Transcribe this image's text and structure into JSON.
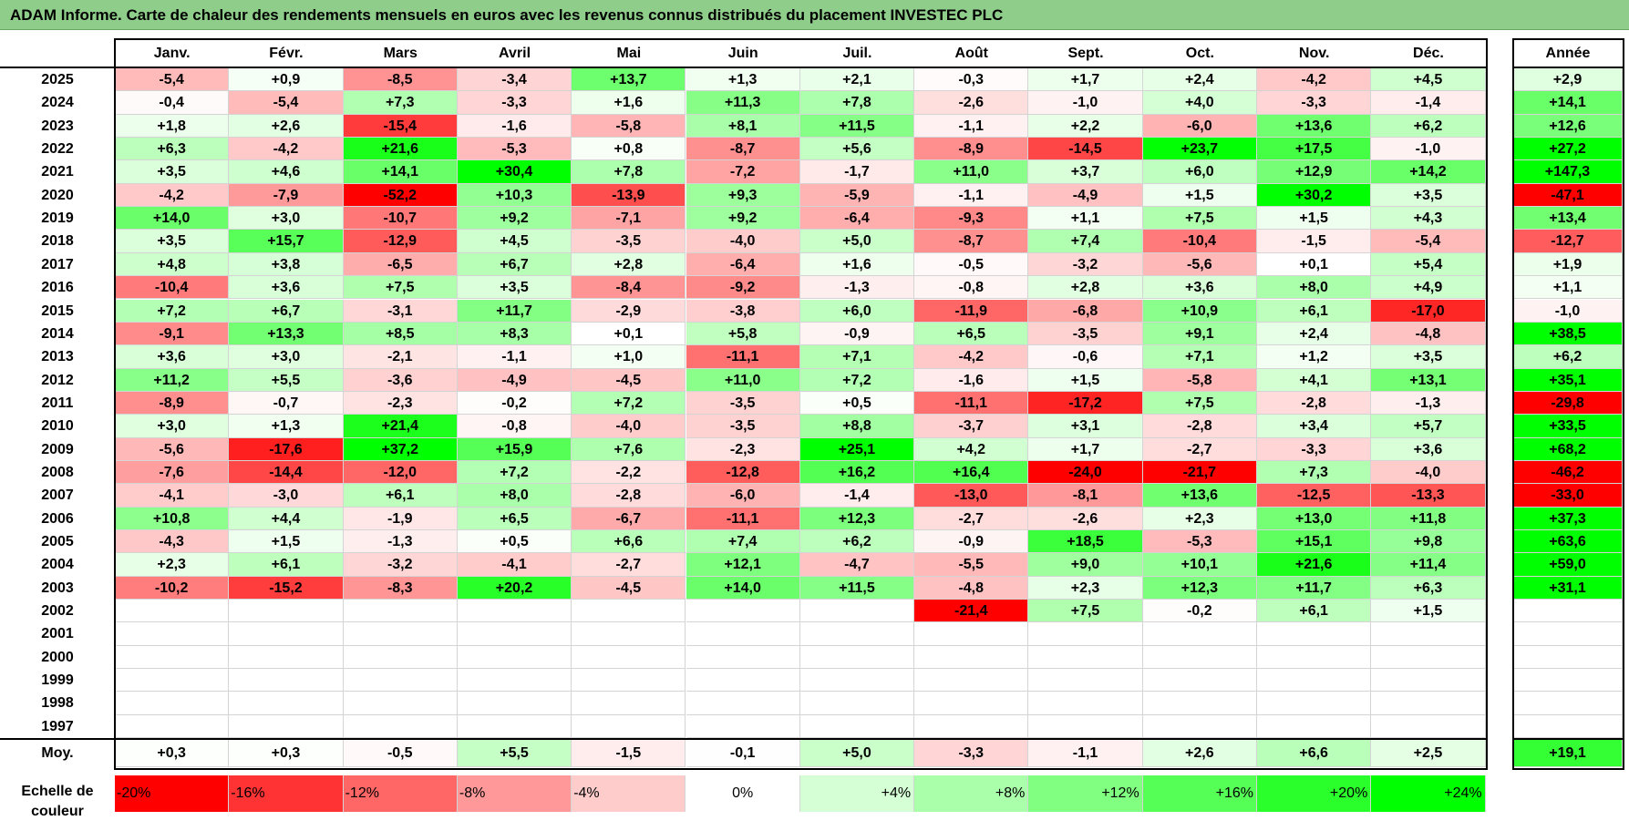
{
  "title": "ADAM Informe. Carte de chaleur des rendements mensuels en euros avec les revenus connus distribués du placement INVESTEC PLC",
  "chart_data": {
    "type": "heatmap",
    "title": "ADAM Informe. Carte de chaleur des rendements mensuels en euros avec les revenus connus distribués du placement INVESTEC PLC",
    "months": [
      "Janv.",
      "Févr.",
      "Mars",
      "Avril",
      "Mai",
      "Juin",
      "Juil.",
      "Août",
      "Sept.",
      "Oct.",
      "Nov.",
      "Déc."
    ],
    "year_header": "Année",
    "average_label": "Moy.",
    "rows": [
      {
        "year": "2025",
        "values": [
          "-5,4",
          "+0,9",
          "-8,5",
          "-3,4",
          "+13,7",
          "+1,3",
          "+2,1",
          "-0,3",
          "+1,7",
          "+2,4",
          "-4,2",
          "+4,5"
        ],
        "annual": "+2,9"
      },
      {
        "year": "2024",
        "values": [
          "-0,4",
          "-5,4",
          "+7,3",
          "-3,3",
          "+1,6",
          "+11,3",
          "+7,8",
          "-2,6",
          "-1,0",
          "+4,0",
          "-3,3",
          "-1,4"
        ],
        "annual": "+14,1"
      },
      {
        "year": "2023",
        "values": [
          "+1,8",
          "+2,6",
          "-15,4",
          "-1,6",
          "-5,8",
          "+8,1",
          "+11,5",
          "-1,1",
          "+2,2",
          "-6,0",
          "+13,6",
          "+6,2"
        ],
        "annual": "+12,6"
      },
      {
        "year": "2022",
        "values": [
          "+6,3",
          "-4,2",
          "+21,6",
          "-5,3",
          "+0,8",
          "-8,7",
          "+5,6",
          "-8,9",
          "-14,5",
          "+23,7",
          "+17,5",
          "-1,0"
        ],
        "annual": "+27,2"
      },
      {
        "year": "2021",
        "values": [
          "+3,5",
          "+4,6",
          "+14,1",
          "+30,4",
          "+7,8",
          "-7,2",
          "-1,7",
          "+11,0",
          "+3,7",
          "+6,0",
          "+12,9",
          "+14,2"
        ],
        "annual": "+147,3"
      },
      {
        "year": "2020",
        "values": [
          "-4,2",
          "-7,9",
          "-52,2",
          "+10,3",
          "-13,9",
          "+9,3",
          "-5,9",
          "-1,1",
          "-4,9",
          "+1,5",
          "+30,2",
          "+3,5"
        ],
        "annual": "-47,1"
      },
      {
        "year": "2019",
        "values": [
          "+14,0",
          "+3,0",
          "-10,7",
          "+9,2",
          "-7,1",
          "+9,2",
          "-6,4",
          "-9,3",
          "+1,1",
          "+7,5",
          "+1,5",
          "+4,3"
        ],
        "annual": "+13,4"
      },
      {
        "year": "2018",
        "values": [
          "+3,5",
          "+15,7",
          "-12,9",
          "+4,5",
          "-3,5",
          "-4,0",
          "+5,0",
          "-8,7",
          "+7,4",
          "-10,4",
          "-1,5",
          "-5,4"
        ],
        "annual": "-12,7"
      },
      {
        "year": "2017",
        "values": [
          "+4,8",
          "+3,8",
          "-6,5",
          "+6,7",
          "+2,8",
          "-6,4",
          "+1,6",
          "-0,5",
          "-3,2",
          "-5,6",
          "+0,1",
          "+5,4"
        ],
        "annual": "+1,9"
      },
      {
        "year": "2016",
        "values": [
          "-10,4",
          "+3,6",
          "+7,5",
          "+3,5",
          "-8,4",
          "-9,2",
          "-1,3",
          "-0,8",
          "+2,8",
          "+3,6",
          "+8,0",
          "+4,9"
        ],
        "annual": "+1,1"
      },
      {
        "year": "2015",
        "values": [
          "+7,2",
          "+6,7",
          "-3,1",
          "+11,7",
          "-2,9",
          "-3,8",
          "+6,0",
          "-11,9",
          "-6,8",
          "+10,9",
          "+6,1",
          "-17,0"
        ],
        "annual": "-1,0"
      },
      {
        "year": "2014",
        "values": [
          "-9,1",
          "+13,3",
          "+8,5",
          "+8,3",
          "+0,1",
          "+5,8",
          "-0,9",
          "+6,5",
          "-3,5",
          "+9,1",
          "+2,4",
          "-4,8"
        ],
        "annual": "+38,5"
      },
      {
        "year": "2013",
        "values": [
          "+3,6",
          "+3,0",
          "-2,1",
          "-1,1",
          "+1,0",
          "-11,1",
          "+7,1",
          "-4,2",
          "-0,6",
          "+7,1",
          "+1,2",
          "+3,5"
        ],
        "annual": "+6,2"
      },
      {
        "year": "2012",
        "values": [
          "+11,2",
          "+5,5",
          "-3,6",
          "-4,9",
          "-4,5",
          "+11,0",
          "+7,2",
          "-1,6",
          "+1,5",
          "-5,8",
          "+4,1",
          "+13,1"
        ],
        "annual": "+35,1"
      },
      {
        "year": "2011",
        "values": [
          "-8,9",
          "-0,7",
          "-2,3",
          "-0,2",
          "+7,2",
          "-3,5",
          "+0,5",
          "-11,1",
          "-17,2",
          "+7,5",
          "-2,8",
          "-1,3"
        ],
        "annual": "-29,8"
      },
      {
        "year": "2010",
        "values": [
          "+3,0",
          "+1,3",
          "+21,4",
          "-0,8",
          "-4,0",
          "-3,5",
          "+8,8",
          "-3,7",
          "+3,1",
          "-2,8",
          "+3,4",
          "+5,7"
        ],
        "annual": "+33,5"
      },
      {
        "year": "2009",
        "values": [
          "-5,6",
          "-17,6",
          "+37,2",
          "+15,9",
          "+7,6",
          "-2,3",
          "+25,1",
          "+4,2",
          "+1,7",
          "-2,7",
          "-3,3",
          "+3,6"
        ],
        "annual": "+68,2"
      },
      {
        "year": "2008",
        "values": [
          "-7,6",
          "-14,4",
          "-12,0",
          "+7,2",
          "-2,2",
          "-12,8",
          "+16,2",
          "+16,4",
          "-24,0",
          "-21,7",
          "+7,3",
          "-4,0"
        ],
        "annual": "-46,2"
      },
      {
        "year": "2007",
        "values": [
          "-4,1",
          "-3,0",
          "+6,1",
          "+8,0",
          "-2,8",
          "-6,0",
          "-1,4",
          "-13,0",
          "-8,1",
          "+13,6",
          "-12,5",
          "-13,3"
        ],
        "annual": "-33,0"
      },
      {
        "year": "2006",
        "values": [
          "+10,8",
          "+4,4",
          "-1,9",
          "+6,5",
          "-6,7",
          "-11,1",
          "+12,3",
          "-2,7",
          "-2,6",
          "+2,3",
          "+13,0",
          "+11,8"
        ],
        "annual": "+37,3"
      },
      {
        "year": "2005",
        "values": [
          "-4,3",
          "+1,5",
          "-1,3",
          "+0,5",
          "+6,6",
          "+7,4",
          "+6,2",
          "-0,9",
          "+18,5",
          "-5,3",
          "+15,1",
          "+9,8"
        ],
        "annual": "+63,6"
      },
      {
        "year": "2004",
        "values": [
          "+2,3",
          "+6,1",
          "-3,2",
          "-4,1",
          "-2,7",
          "+12,1",
          "-4,7",
          "-5,5",
          "+9,0",
          "+10,1",
          "+21,6",
          "+11,4"
        ],
        "annual": "+59,0"
      },
      {
        "year": "2003",
        "values": [
          "-10,2",
          "-15,2",
          "-8,3",
          "+20,2",
          "-4,5",
          "+14,0",
          "+11,5",
          "-4,8",
          "+2,3",
          "+12,3",
          "+11,7",
          "+6,3"
        ],
        "annual": "+31,1"
      },
      {
        "year": "2002",
        "values": [
          "",
          "",
          "",
          "",
          "",
          "",
          "",
          "-21,4",
          "+7,5",
          "-0,2",
          "+6,1",
          "+1,5"
        ],
        "annual": ""
      },
      {
        "year": "2001",
        "values": [
          "",
          "",
          "",
          "",
          "",
          "",
          "",
          "",
          "",
          "",
          "",
          ""
        ],
        "annual": ""
      },
      {
        "year": "2000",
        "values": [
          "",
          "",
          "",
          "",
          "",
          "",
          "",
          "",
          "",
          "",
          "",
          ""
        ],
        "annual": ""
      },
      {
        "year": "1999",
        "values": [
          "",
          "",
          "",
          "",
          "",
          "",
          "",
          "",
          "",
          "",
          "",
          ""
        ],
        "annual": ""
      },
      {
        "year": "1998",
        "values": [
          "",
          "",
          "",
          "",
          "",
          "",
          "",
          "",
          "",
          "",
          "",
          ""
        ],
        "annual": ""
      },
      {
        "year": "1997",
        "values": [
          "",
          "",
          "",
          "",
          "",
          "",
          "",
          "",
          "",
          "",
          "",
          ""
        ],
        "annual": ""
      }
    ],
    "averages": [
      "+0,3",
      "+0,3",
      "-0,5",
      "+5,5",
      "-1,5",
      "-0,1",
      "+5,0",
      "-3,3",
      "-1,1",
      "+2,6",
      "+6,6",
      "+2,5"
    ],
    "average_annual": "+19,1",
    "scale_label": "Echelle de couleur",
    "scale": [
      {
        "label": "-20%",
        "value": -20
      },
      {
        "label": "-16%",
        "value": -16
      },
      {
        "label": "-12%",
        "value": -12
      },
      {
        "label": "-8%",
        "value": -8
      },
      {
        "label": "-4%",
        "value": -4
      },
      {
        "label": "0%",
        "value": 0
      },
      {
        "label": "+4%",
        "value": 4
      },
      {
        "label": "+8%",
        "value": 8
      },
      {
        "label": "+12%",
        "value": 12
      },
      {
        "label": "+16%",
        "value": 16
      },
      {
        "label": "+20%",
        "value": 20
      },
      {
        "label": "+24%",
        "value": 24
      }
    ],
    "colors": {
      "negative_max": "#ff0000",
      "neutral": "#ffffff",
      "positive_max": "#00ff00",
      "title_background": "#8fce8a"
    }
  }
}
